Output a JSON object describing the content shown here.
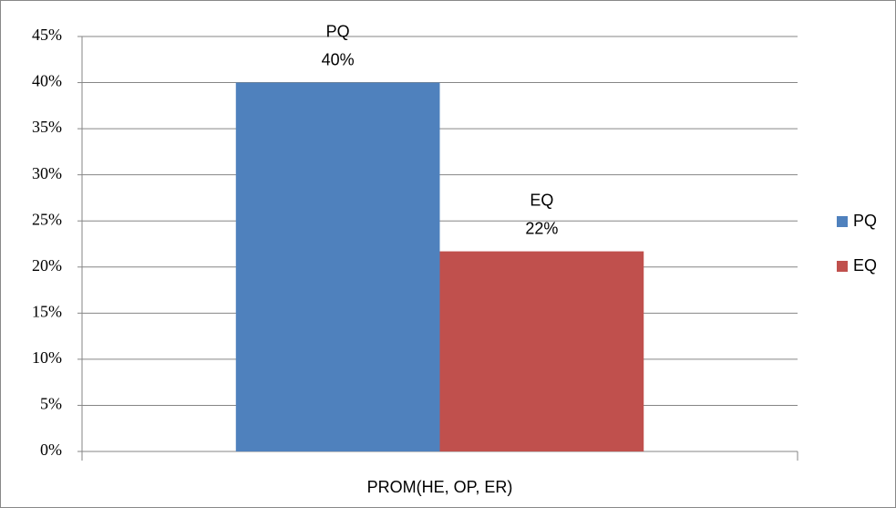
{
  "chart_data": {
    "type": "bar",
    "categories": [
      "PROM(HE, OP, ER)"
    ],
    "series": [
      {
        "name": "PQ",
        "color": "#4f81bd",
        "values": [
          40
        ],
        "value_labels": [
          "40%"
        ]
      },
      {
        "name": "EQ",
        "color": "#c0504d",
        "values": [
          21.7
        ],
        "value_labels": [
          "22%"
        ]
      }
    ],
    "ylim": [
      0,
      45
    ],
    "yticks": [
      {
        "value": 0,
        "label": "0%"
      },
      {
        "value": 5,
        "label": "5%"
      },
      {
        "value": 10,
        "label": "10%"
      },
      {
        "value": 15,
        "label": "15%"
      },
      {
        "value": 20,
        "label": "20%"
      },
      {
        "value": 25,
        "label": "25%"
      },
      {
        "value": 30,
        "label": "30%"
      },
      {
        "value": 35,
        "label": "35%"
      },
      {
        "value": 40,
        "label": "40%"
      },
      {
        "value": 45,
        "label": "45%"
      }
    ],
    "grid": true,
    "legend": "right"
  }
}
